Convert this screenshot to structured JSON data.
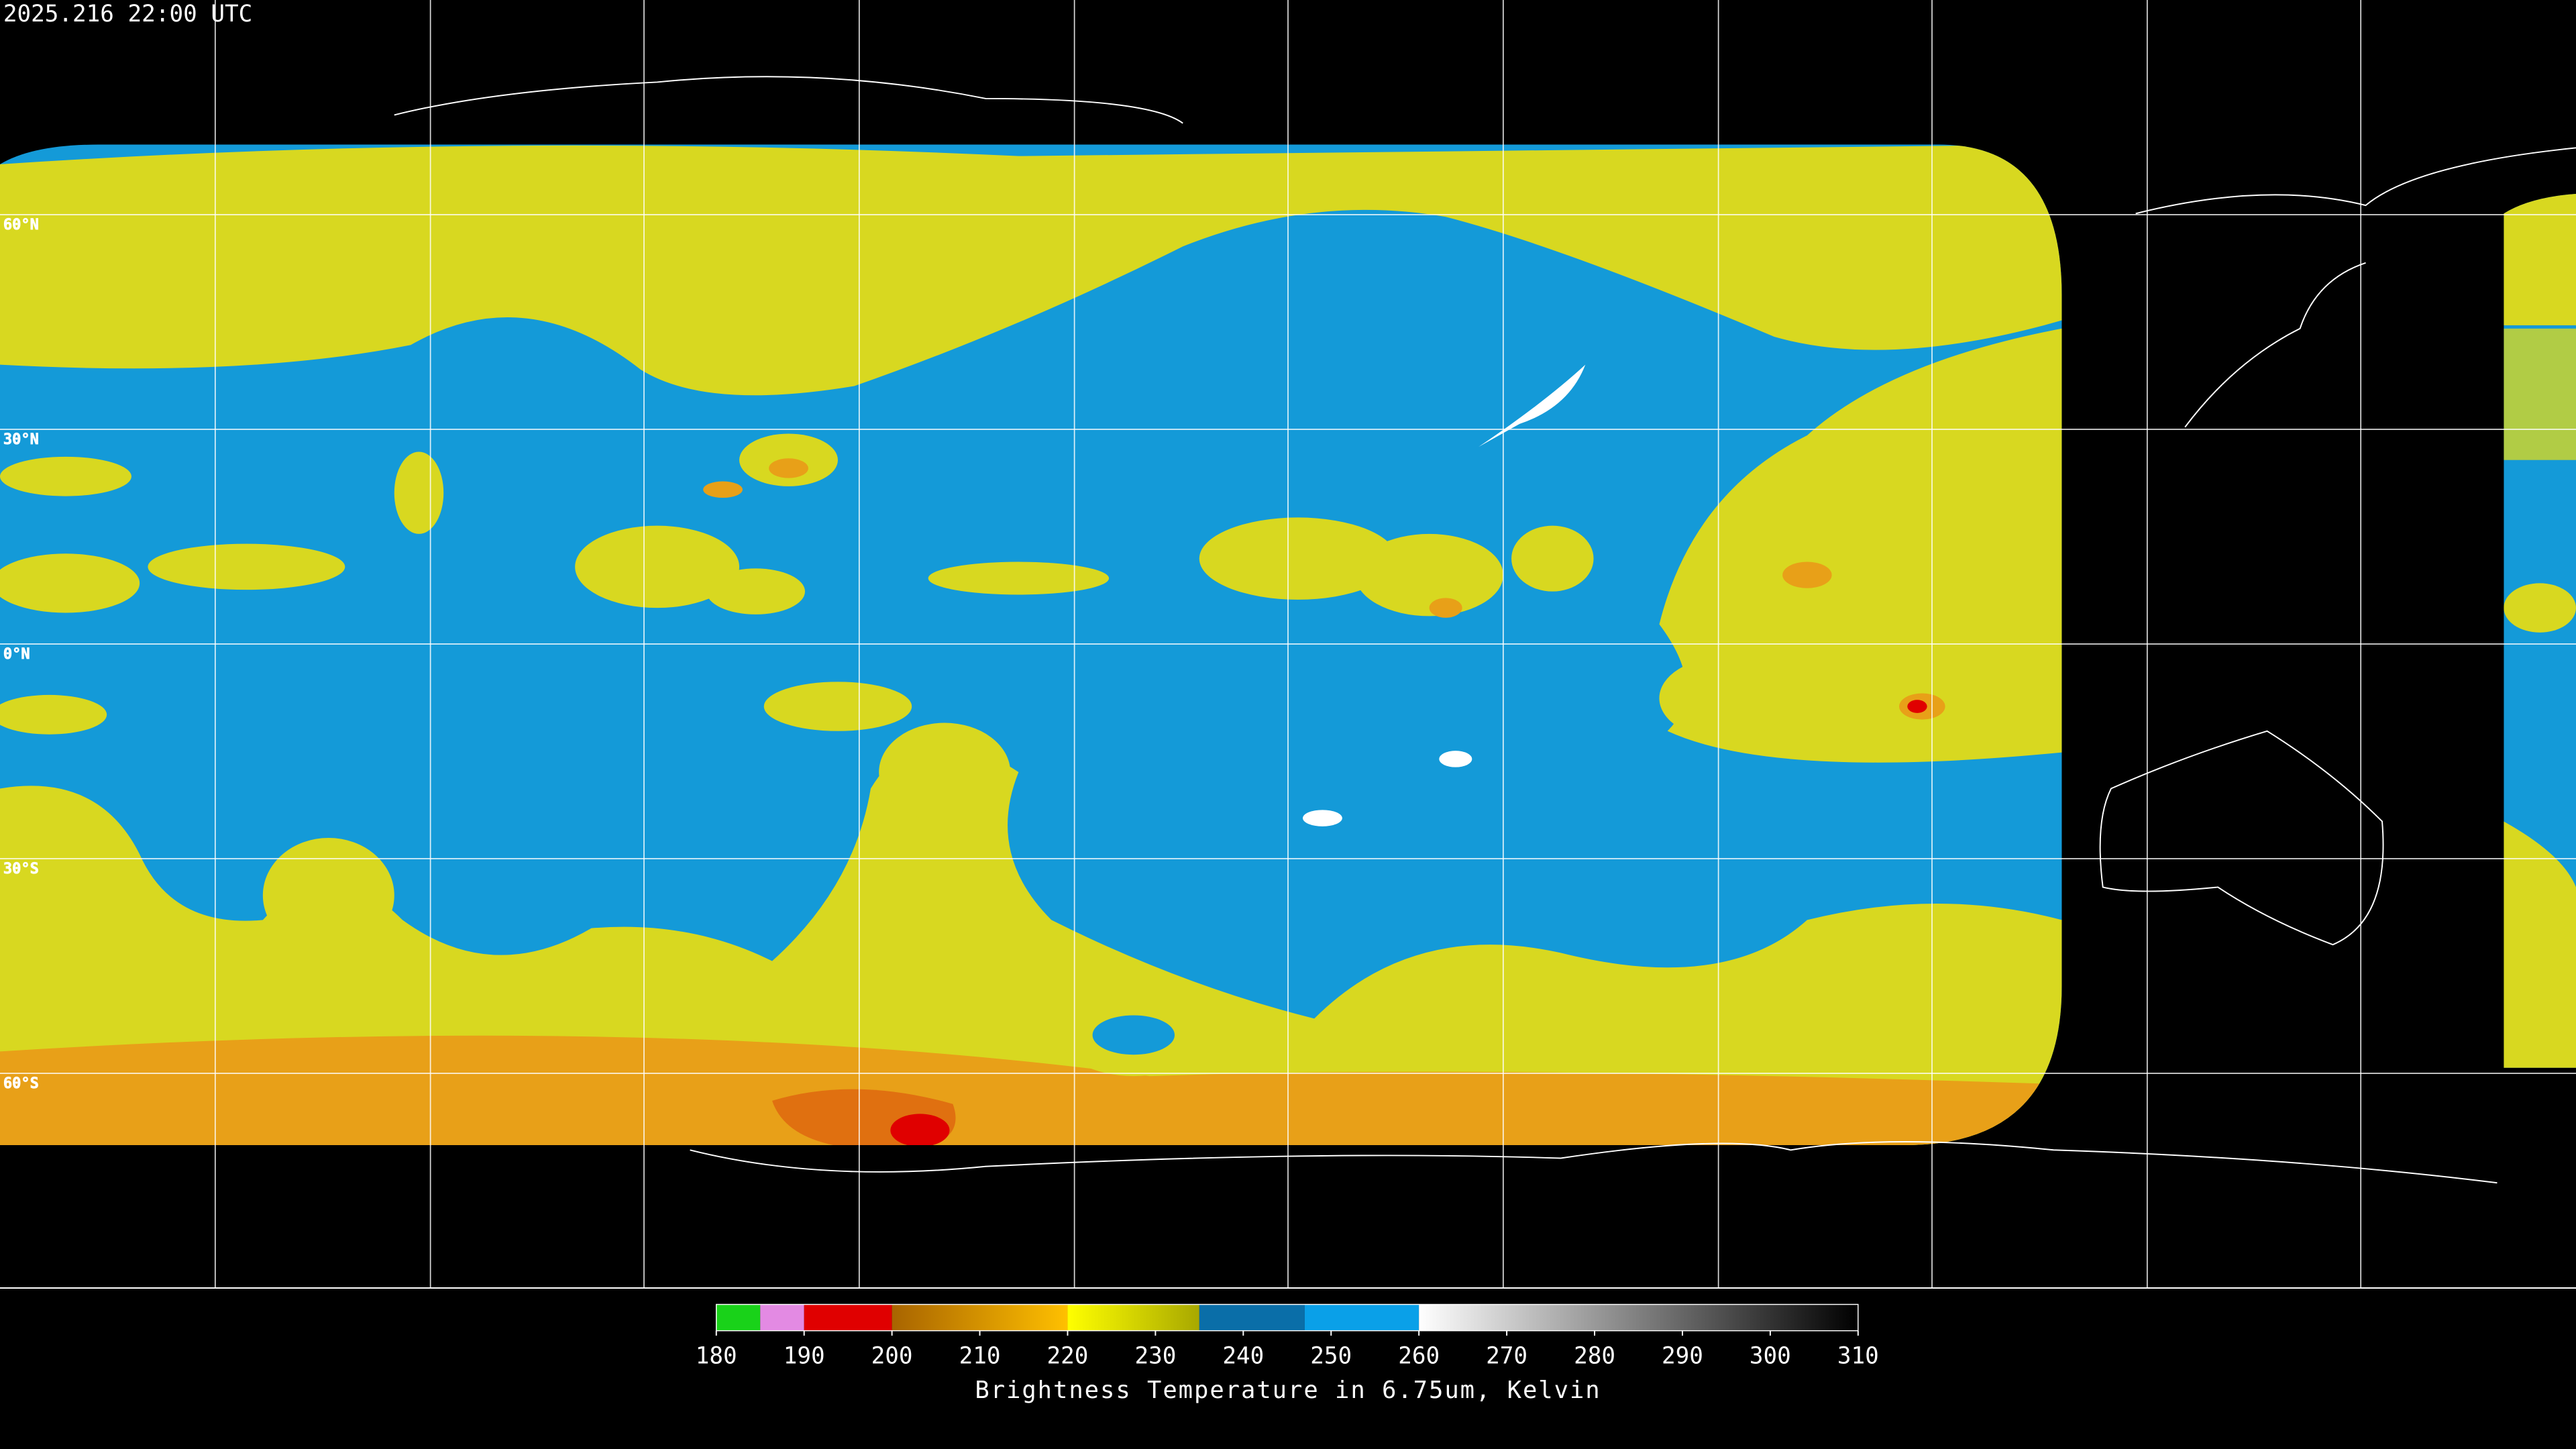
{
  "header": {
    "timestamp": "2025.216 22:00 UTC"
  },
  "map": {
    "latlim": [
      -90,
      90
    ],
    "lat_lines": [
      {
        "value": 60,
        "label": "60°N"
      },
      {
        "value": 30,
        "label": "30°N"
      },
      {
        "value": 0,
        "label": "0°N"
      },
      {
        "value": -30,
        "label": "30°S"
      },
      {
        "value": -60,
        "label": "60°S"
      }
    ]
  },
  "colorbar": {
    "title": "Brightness Temperature in 6.75um, Kelvin",
    "xlim": [
      180,
      310
    ],
    "xticks": [
      180,
      190,
      200,
      210,
      220,
      230,
      240,
      250,
      260,
      270,
      280,
      290,
      300,
      310
    ],
    "segments": [
      {
        "from": 180,
        "to": 185,
        "colors": [
          "#19d219",
          "#19d219"
        ]
      },
      {
        "from": 185,
        "to": 190,
        "colors": [
          "#e38ae3",
          "#e38ae3"
        ]
      },
      {
        "from": 190,
        "to": 200,
        "colors": [
          "#e00000",
          "#e00000"
        ]
      },
      {
        "from": 200,
        "to": 220,
        "colors": [
          "#a86400",
          "#ffc000"
        ]
      },
      {
        "from": 220,
        "to": 235,
        "colors": [
          "#ffff00",
          "#a8a800"
        ]
      },
      {
        "from": 235,
        "to": 247,
        "colors": [
          "#0a6ea8",
          "#0a6ea8"
        ]
      },
      {
        "from": 247,
        "to": 260,
        "colors": [
          "#0aa0e8",
          "#0aa0e8"
        ]
      },
      {
        "from": 260,
        "to": 310,
        "colors": [
          "#ffffff",
          "#000000"
        ]
      }
    ]
  }
}
